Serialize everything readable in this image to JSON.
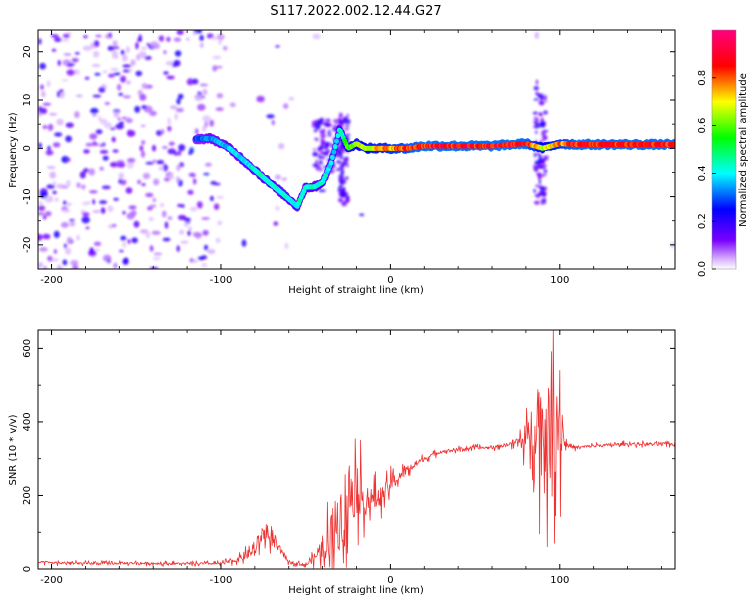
{
  "title": "S117.2022.002.12.44.G27",
  "chart_data": [
    {
      "type": "heatmap",
      "xlabel": "Height of straight line (km)",
      "ylabel": "Frequency (Hz)",
      "xlim": [
        -208,
        168
      ],
      "ylim": [
        -25,
        24.5
      ],
      "x_ticks": [
        -200,
        -100,
        0,
        100
      ],
      "x_tick_labels": [
        "-200",
        "-100",
        "0",
        "100"
      ],
      "y_ticks": [
        -20,
        -10,
        0,
        10,
        20
      ],
      "y_tick_labels": [
        "-20",
        "-10",
        "0",
        "10",
        "20"
      ],
      "colorbar": {
        "label": "Normalized spectral amplitude",
        "range": [
          0,
          1
        ],
        "ticks": [
          0.0,
          0.2,
          0.4,
          0.6,
          0.8
        ],
        "tick_labels": [
          "0.0",
          "0.2",
          "0.4",
          "0.6",
          "0.8"
        ],
        "colors": [
          "#ffffff",
          "#7a00ff",
          "#0000ff",
          "#00ffff",
          "#00ff00",
          "#ffff00",
          "#ff0000",
          "#ff0080"
        ]
      },
      "ridge": {
        "x": [
          -115,
          -105,
          -95,
          -85,
          -75,
          -65,
          -55,
          -50,
          -45,
          -40,
          -35,
          -30,
          -25,
          -20,
          -15,
          -10,
          0,
          10,
          20,
          40,
          60,
          80,
          90,
          100,
          110,
          130,
          150,
          168
        ],
        "y": [
          2,
          2,
          0,
          -3,
          -6,
          -9,
          -12,
          -8,
          -8,
          -7,
          -3,
          4,
          0,
          1,
          0,
          0,
          0,
          0,
          0.5,
          0.5,
          0.5,
          1,
          0,
          1,
          0.8,
          0.8,
          0.8,
          0.8
        ],
        "amplitude": [
          0.3,
          0.35,
          0.4,
          0.42,
          0.45,
          0.45,
          0.45,
          0.45,
          0.45,
          0.45,
          0.4,
          0.45,
          0.6,
          0.7,
          0.7,
          0.75,
          0.8,
          0.85,
          0.9,
          0.9,
          0.9,
          0.9,
          0.7,
          0.8,
          0.9,
          0.9,
          0.9,
          0.9
        ]
      }
    },
    {
      "type": "line",
      "xlabel": "Height of straight line (km)",
      "ylabel": "SNR (10 * v/v)",
      "xlim": [
        -208,
        168
      ],
      "ylim": [
        0,
        650
      ],
      "x_ticks": [
        -200,
        -100,
        0,
        100
      ],
      "x_tick_labels": [
        "-200",
        "-100",
        "0",
        "100"
      ],
      "y_ticks": [
        0,
        200,
        400,
        600
      ],
      "y_tick_labels": [
        "0",
        "200",
        "400",
        "600"
      ],
      "color": "#ee3333",
      "series": [
        {
          "x": [
            -208,
            -180,
            -150,
            -120,
            -100,
            -90,
            -80,
            -75,
            -70,
            -60,
            -50,
            -45,
            -40,
            -35,
            -30,
            -25,
            -20,
            -15,
            -10,
            -5,
            0,
            10,
            20,
            30,
            40,
            50,
            60,
            70,
            80,
            85,
            90,
            95,
            100,
            103,
            110,
            120,
            140,
            168
          ],
          "y": [
            18,
            15,
            16,
            14,
            15,
            25,
            50,
            100,
            80,
            20,
            10,
            30,
            60,
            90,
            140,
            200,
            230,
            180,
            190,
            200,
            230,
            270,
            300,
            320,
            325,
            330,
            330,
            340,
            350,
            400,
            380,
            360,
            420,
            340,
            330,
            335,
            340,
            340
          ],
          "spread": [
            8,
            8,
            8,
            8,
            8,
            15,
            40,
            60,
            40,
            10,
            8,
            30,
            80,
            150,
            220,
            250,
            200,
            90,
            80,
            60,
            50,
            30,
            15,
            10,
            10,
            10,
            10,
            10,
            80,
            200,
            350,
            300,
            350,
            20,
            10,
            10,
            10,
            10
          ]
        }
      ]
    }
  ]
}
